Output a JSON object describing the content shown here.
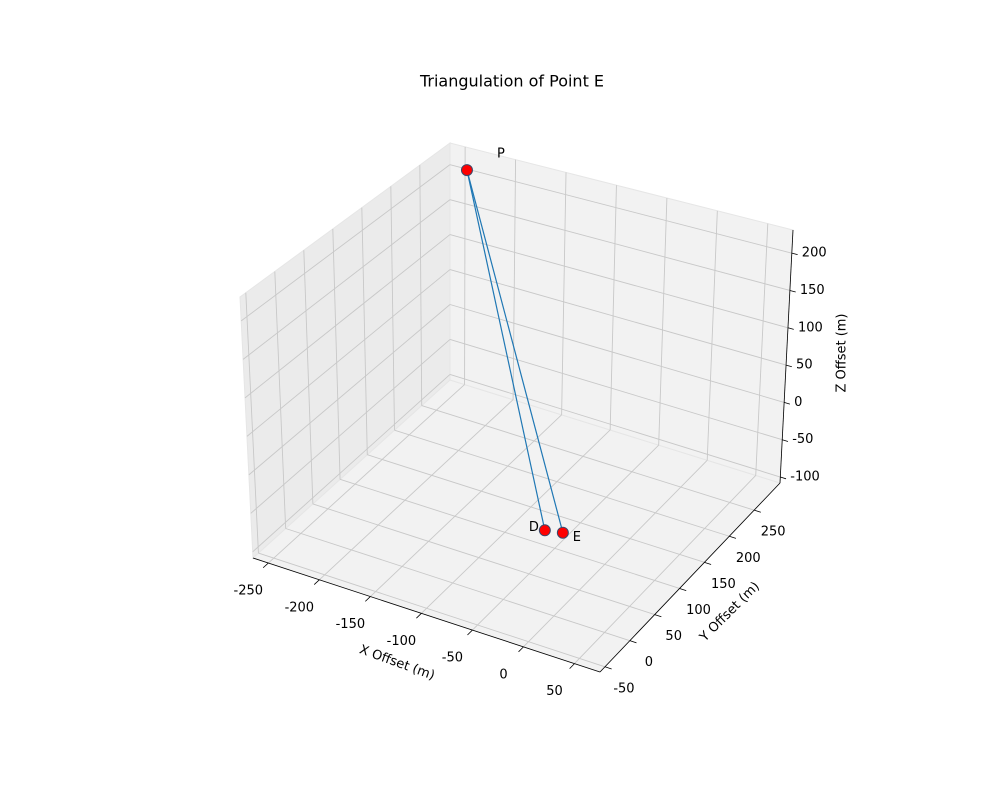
{
  "chart_data": {
    "type": "scatter3d",
    "title": "Triangulation of Point E",
    "x_label": "X Offset (m)",
    "y_label": "Y Offset (m)",
    "z_label": "Z Offset (m)",
    "labels": [
      "P",
      "D",
      "E"
    ],
    "x": [
      -230,
      -10,
      5
    ],
    "y": [
      270,
      0,
      5
    ],
    "z": [
      225,
      0,
      0
    ],
    "color": "#ff0000",
    "line_color": "#1f77b4",
    "xlim": [
      -265,
      75
    ],
    "ylim": [
      -60,
      302
    ],
    "zlim": [
      -108,
      231
    ],
    "xticks": [
      -250,
      -200,
      -150,
      -100,
      -50,
      0,
      50
    ],
    "yticks": [
      -50,
      0,
      50,
      100,
      150,
      200,
      250
    ],
    "zticks": [
      -100,
      -50,
      0,
      50,
      100,
      150,
      200
    ],
    "grid": true
  }
}
